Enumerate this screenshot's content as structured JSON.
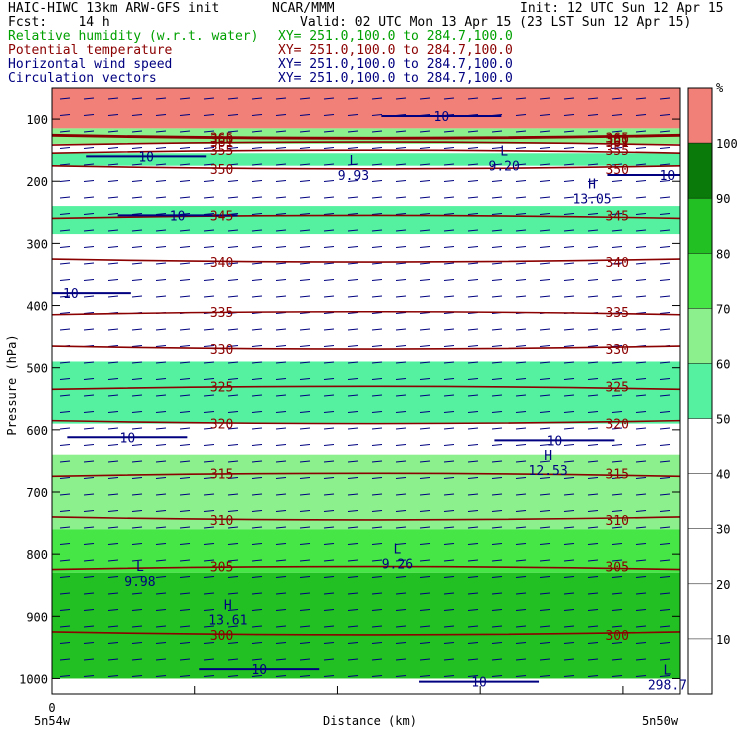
{
  "header": {
    "left": [
      {
        "text": "HAIC-HIWC 13km ARW-GFS init",
        "color": "#000000"
      },
      {
        "text": "Fcst:    14 h",
        "color": "#000000"
      },
      {
        "text": "Relative humidity (w.r.t. water)",
        "color": "#00a000"
      },
      {
        "text": "Potential temperature",
        "color": "#8b0000"
      },
      {
        "text": "Horizontal wind speed",
        "color": "#000080"
      },
      {
        "text": "Circulation vectors",
        "color": "#000080"
      }
    ],
    "mid": [
      {
        "text": "NCAR/MMM",
        "color": "#000000"
      },
      {
        "text": "Valid: 02 UTC Mon 13 Apr 15 (23 LST Sun 12 Apr 15)",
        "color": "#000000"
      },
      {
        "text": "XY= 251.0,100.0 to 284.7,100.0",
        "color": "#00a000"
      },
      {
        "text": "XY= 251.0,100.0 to 284.7,100.0",
        "color": "#8b0000"
      },
      {
        "text": "XY= 251.0,100.0 to 284.7,100.0",
        "color": "#000080"
      },
      {
        "text": "XY= 251.0,100.0 to 284.7,100.0",
        "color": "#000080"
      }
    ],
    "init": "Init: 12 UTC Sun 12 Apr 15"
  },
  "chart_data": {
    "type": "heatmap",
    "ylabel": "Pressure (hPa)",
    "xlabel": "Distance (km)",
    "x_left_label": "5n54w",
    "x_right_label": "5n50w",
    "x_zero_label": "0",
    "yticks": [
      100,
      200,
      300,
      400,
      500,
      600,
      700,
      800,
      900,
      1000
    ],
    "ylim": [
      1025,
      50
    ],
    "colorbar": {
      "unit": "%",
      "levels": [
        10,
        20,
        30,
        40,
        50,
        60,
        70,
        80,
        90,
        100
      ],
      "colors": [
        "#ffffff",
        "#ffffff",
        "#ffffff",
        "#ffffff",
        "#ffffff",
        "#55f0a0",
        "#8cf08c",
        "#46e646",
        "#22c022",
        "#0a7a0a",
        "#f08078"
      ]
    },
    "rh_bands": [
      {
        "p_top": 50,
        "p_bot": 115,
        "rh": 100
      },
      {
        "p_top": 115,
        "p_bot": 140,
        "rh": 60
      },
      {
        "p_top": 155,
        "p_bot": 175,
        "rh": 55
      },
      {
        "p_top": 240,
        "p_bot": 285,
        "rh": 55
      },
      {
        "p_top": 490,
        "p_bot": 590,
        "rh": 55
      },
      {
        "p_top": 640,
        "p_bot": 760,
        "rh": 60
      },
      {
        "p_top": 760,
        "p_bot": 830,
        "rh": 75
      },
      {
        "p_top": 830,
        "p_bot": 1000,
        "rh": 85
      }
    ],
    "theta_contours": [
      {
        "value": 365,
        "p": 130
      },
      {
        "value": 361,
        "p": 137
      },
      {
        "value": 360,
        "p": 132
      },
      {
        "value": 355,
        "p": 150
      },
      {
        "value": 350,
        "p": 180
      },
      {
        "value": 345,
        "p": 255
      },
      {
        "value": 340,
        "p": 330
      },
      {
        "value": 335,
        "p": 410
      },
      {
        "value": 330,
        "p": 470
      },
      {
        "value": 325,
        "p": 530
      },
      {
        "value": 320,
        "p": 590
      },
      {
        "value": 315,
        "p": 670
      },
      {
        "value": 310,
        "p": 745
      },
      {
        "value": 305,
        "p": 820
      },
      {
        "value": 300,
        "p": 930
      }
    ],
    "wind_labels": [
      {
        "text": "10",
        "x": 0.62,
        "p": 95
      },
      {
        "text": "10",
        "x": 0.15,
        "p": 160
      },
      {
        "text": "10",
        "x": 0.2,
        "p": 255
      },
      {
        "text": "10",
        "x": 0.98,
        "p": 190
      },
      {
        "text": "10",
        "x": 0.03,
        "p": 380
      },
      {
        "text": "10",
        "x": 0.12,
        "p": 612
      },
      {
        "text": "10",
        "x": 0.8,
        "p": 617
      },
      {
        "text": "10",
        "x": 0.33,
        "p": 985
      },
      {
        "text": "10",
        "x": 0.68,
        "p": 1005
      }
    ],
    "extrema": [
      {
        "mark": "L",
        "value": "9.93",
        "x": 0.48,
        "p": 190
      },
      {
        "mark": "L",
        "value": "9.20",
        "x": 0.72,
        "p": 175
      },
      {
        "mark": "H",
        "value": "13.05",
        "x": 0.86,
        "p": 228
      },
      {
        "mark": "H",
        "value": "12.53",
        "x": 0.79,
        "p": 665
      },
      {
        "mark": "L",
        "value": "9.98",
        "x": 0.14,
        "p": 843
      },
      {
        "mark": "L",
        "value": "9.26",
        "x": 0.55,
        "p": 815
      },
      {
        "mark": "H",
        "value": "13.61",
        "x": 0.28,
        "p": 905
      },
      {
        "mark": "L",
        "value": "298.7",
        "x": 0.98,
        "p": 1010
      }
    ]
  }
}
